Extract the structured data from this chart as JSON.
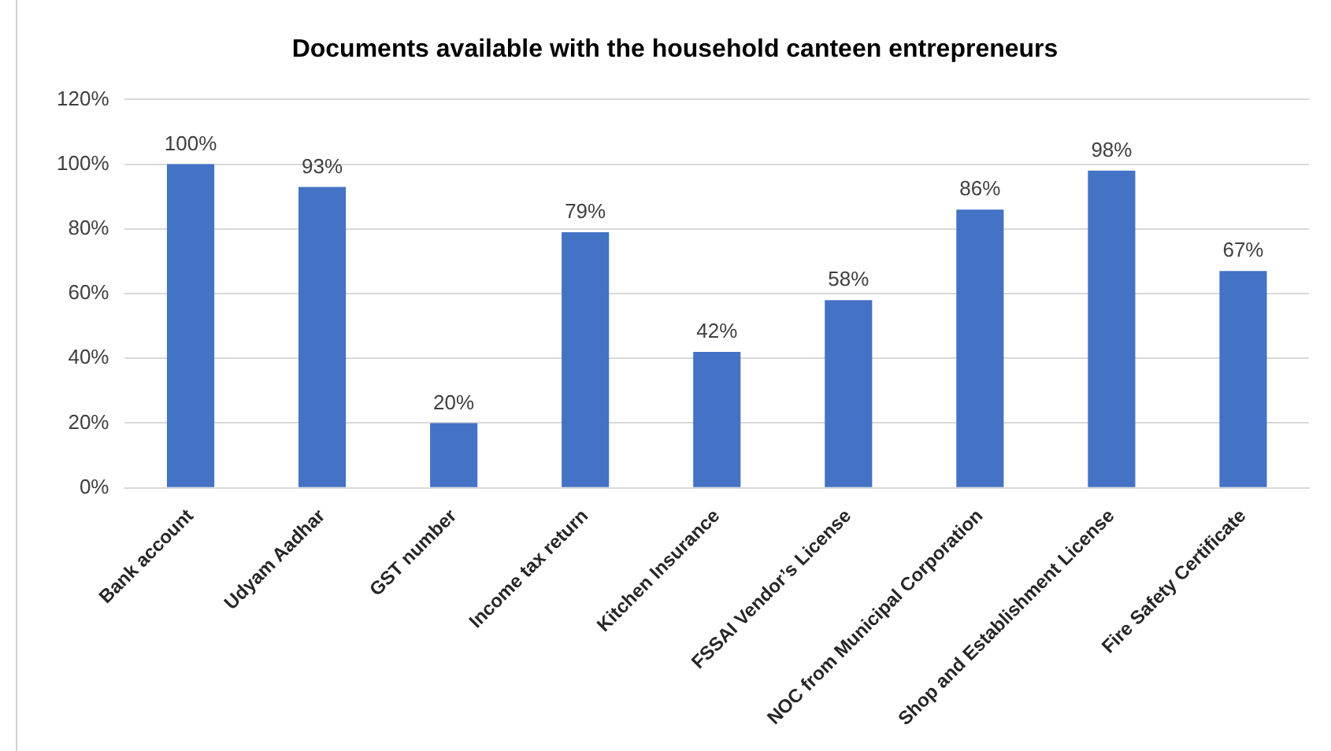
{
  "chart_data": {
    "type": "bar",
    "title": "Documents available with the household canteen entrepreneurs",
    "categories": [
      "Bank account",
      "Udyam Aadhar",
      "GST number",
      "Income tax return",
      "Kitchen Insurance",
      "FSSAI Vendor’s License",
      "NOC from Municipal Corporation",
      "Shop and Establishment License",
      "Fire Safety Certificate"
    ],
    "values": [
      100,
      93,
      20,
      79,
      42,
      58,
      86,
      98,
      67
    ],
    "value_labels": [
      "100%",
      "93%",
      "20%",
      "79%",
      "42%",
      "58%",
      "86%",
      "98%",
      "67%"
    ],
    "color": "#4472c4",
    "ylim": [
      0,
      120
    ],
    "yticks": [
      {
        "value": 0,
        "label": "0%"
      },
      {
        "value": 20,
        "label": "20%"
      },
      {
        "value": 40,
        "label": "40%"
      },
      {
        "value": 60,
        "label": "60%"
      },
      {
        "value": 80,
        "label": "80%"
      },
      {
        "value": 100,
        "label": "100%"
      },
      {
        "value": 120,
        "label": "120%"
      }
    ],
    "grid": "y",
    "legend": false
  }
}
